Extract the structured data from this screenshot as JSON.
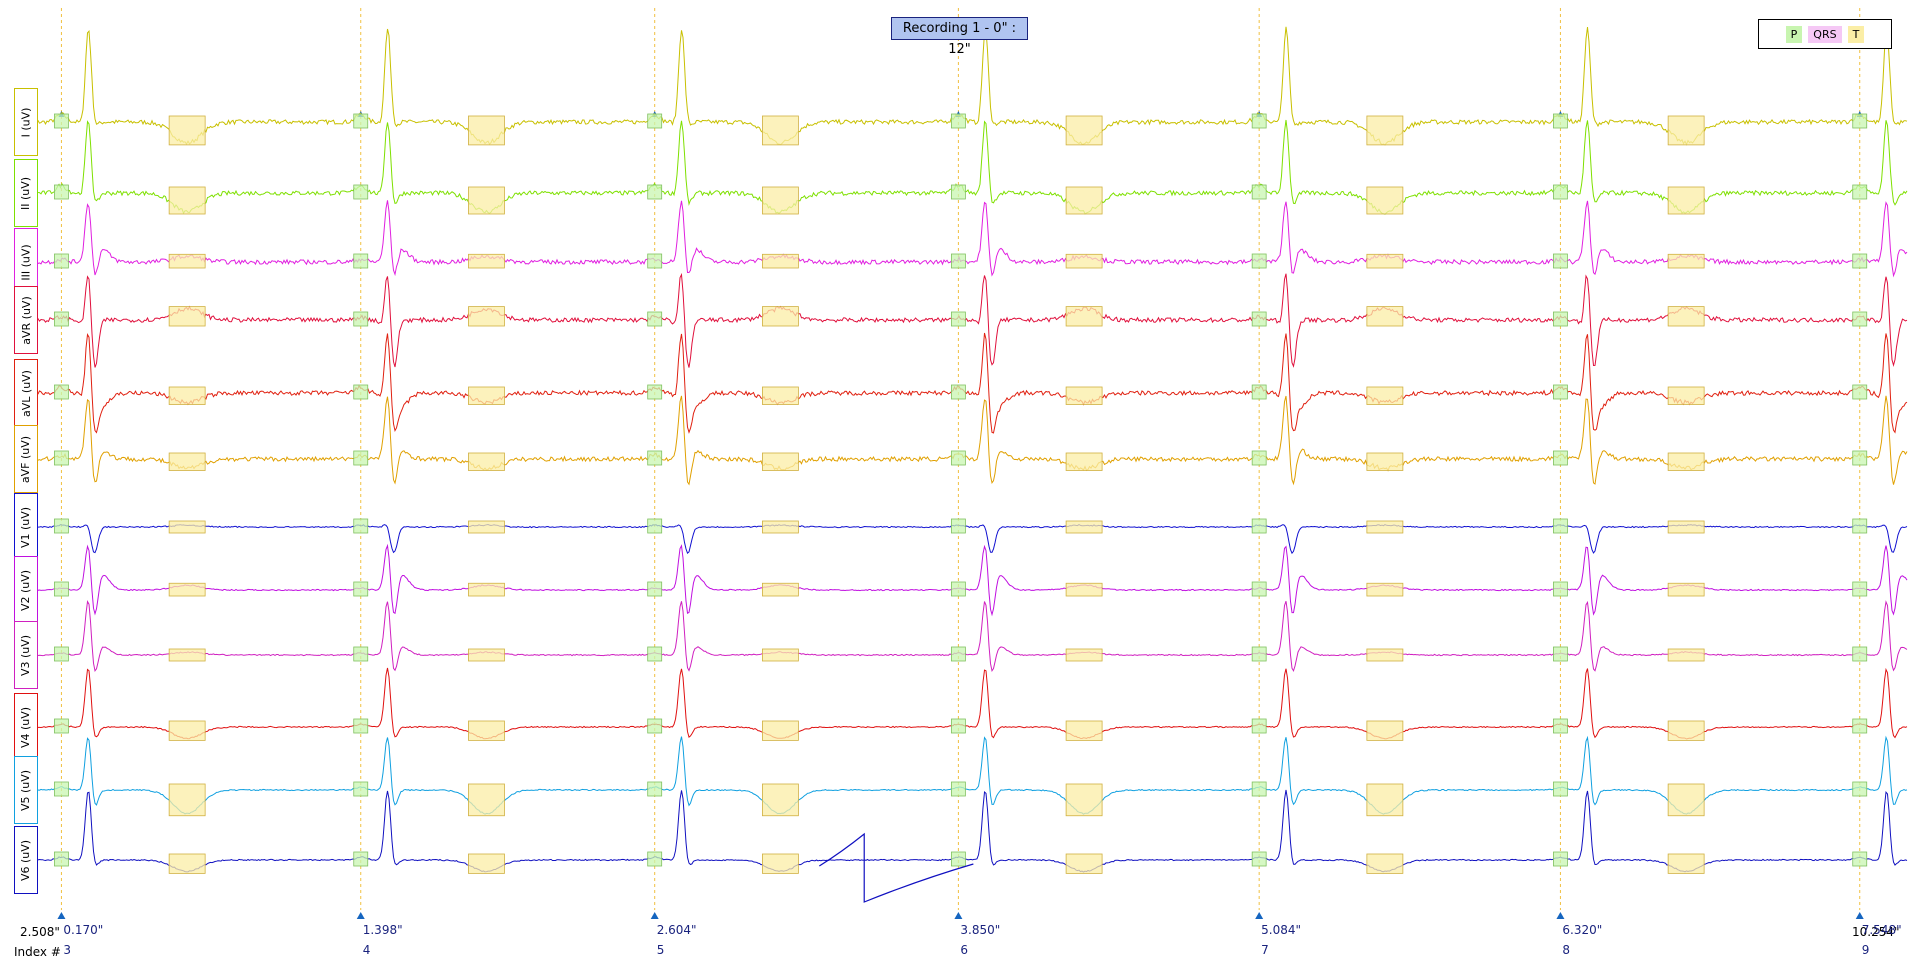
{
  "recording_title": "Recording 1 - 0\" : 12\"",
  "legend": [
    {
      "label": "P",
      "color": "#c8f5b0"
    },
    {
      "label": "QRS",
      "color": "#f5c8f5"
    },
    {
      "label": "T",
      "color": "#fbeea6"
    }
  ],
  "axis": {
    "start_time": "2.508\"",
    "end_time": "10.254\"",
    "index_label": "Index #"
  },
  "chart_data": {
    "type": "line",
    "title": "Recording 1 - 0\" : 12\"",
    "time_range_s": [
      2.508,
      10.254
    ],
    "leads": [
      {
        "name": "I (uV)",
        "color": "#c8c000",
        "morph": {
          "r": 1.0,
          "s": 0.05,
          "q": 0.05,
          "t": -0.22,
          "p": 0.08,
          "rs": 0
        }
      },
      {
        "name": "II (uV)",
        "color": "#7ee000",
        "morph": {
          "r": 0.8,
          "s": 0.15,
          "q": 0.05,
          "t": -0.2,
          "p": 0.08,
          "rs": 0
        }
      },
      {
        "name": "III (uV)",
        "color": "#e020e0",
        "morph": {
          "r": 0.65,
          "s": 0.3,
          "q": 0.0,
          "t": 0.06,
          "p": 0.03,
          "rs": 0.15
        }
      },
      {
        "name": "aVR (uV)",
        "color": "#e0103c",
        "morph": {
          "r": 0.6,
          "s": 0.55,
          "q": 0.1,
          "t": 0.12,
          "p": 0.03,
          "rs": 0
        }
      },
      {
        "name": "aVL (uV)",
        "color": "#e02010",
        "morph": {
          "r": 0.75,
          "s": 0.35,
          "q": 0.08,
          "t": -0.1,
          "p": 0.06,
          "rs": -0.15
        }
      },
      {
        "name": "aVF (uV)",
        "color": "#e0a000",
        "morph": {
          "r": 0.7,
          "s": 0.4,
          "q": 0.0,
          "t": -0.1,
          "p": 0.04,
          "rs": 0.1
        }
      },
      {
        "name": "V1 (uV)",
        "color": "#1010d0",
        "morph": {
          "r": 0.05,
          "s": 0.28,
          "q": 0.0,
          "t": 0.02,
          "p": 0.02,
          "rs": 0
        }
      },
      {
        "name": "V2 (uV)",
        "color": "#c010e0",
        "morph": {
          "r": 0.5,
          "s": 0.45,
          "q": 0.0,
          "t": 0.05,
          "p": 0.02,
          "rs": 0.18
        }
      },
      {
        "name": "V3 (uV)",
        "color": "#d020c0",
        "morph": {
          "r": 0.6,
          "s": 0.3,
          "q": 0.0,
          "t": 0.03,
          "p": 0.02,
          "rs": 0.1
        }
      },
      {
        "name": "V4 (uV)",
        "color": "#e01010",
        "morph": {
          "r": 0.65,
          "s": 0.15,
          "q": 0.0,
          "t": -0.12,
          "p": 0.03,
          "rs": 0
        }
      },
      {
        "name": "V5 (uV)",
        "color": "#10a0e0",
        "morph": {
          "r": 0.6,
          "s": 0.2,
          "q": 0.0,
          "t": -0.25,
          "p": 0.03,
          "rs": 0
        }
      },
      {
        "name": "V6 (uV)",
        "color": "#1010c0",
        "morph": {
          "r": 0.75,
          "s": 0.08,
          "q": 0.0,
          "t": -0.12,
          "p": 0.03,
          "rs": 0
        }
      }
    ],
    "beats": [
      {
        "time": "0.170\"",
        "index": "3",
        "t": 2.678
      },
      {
        "time": "1.398\"",
        "index": "4",
        "t": 3.906
      },
      {
        "time": "2.604\"",
        "index": "5",
        "t": 5.112
      },
      {
        "time": "3.850\"",
        "index": "6",
        "t": 6.358
      },
      {
        "time": "5.084\"",
        "index": "7",
        "t": 7.592
      },
      {
        "time": "6.320\"",
        "index": "8",
        "t": 8.828
      },
      {
        "time": "7.548\"",
        "index": "9",
        "t": 10.056
      }
    ],
    "annotation_colors": {
      "p": "#c8f5b0",
      "qrs": "#f5c8f5",
      "t": "#fbeea6",
      "marker": "#1565c0",
      "guide": "#f0c040"
    }
  }
}
